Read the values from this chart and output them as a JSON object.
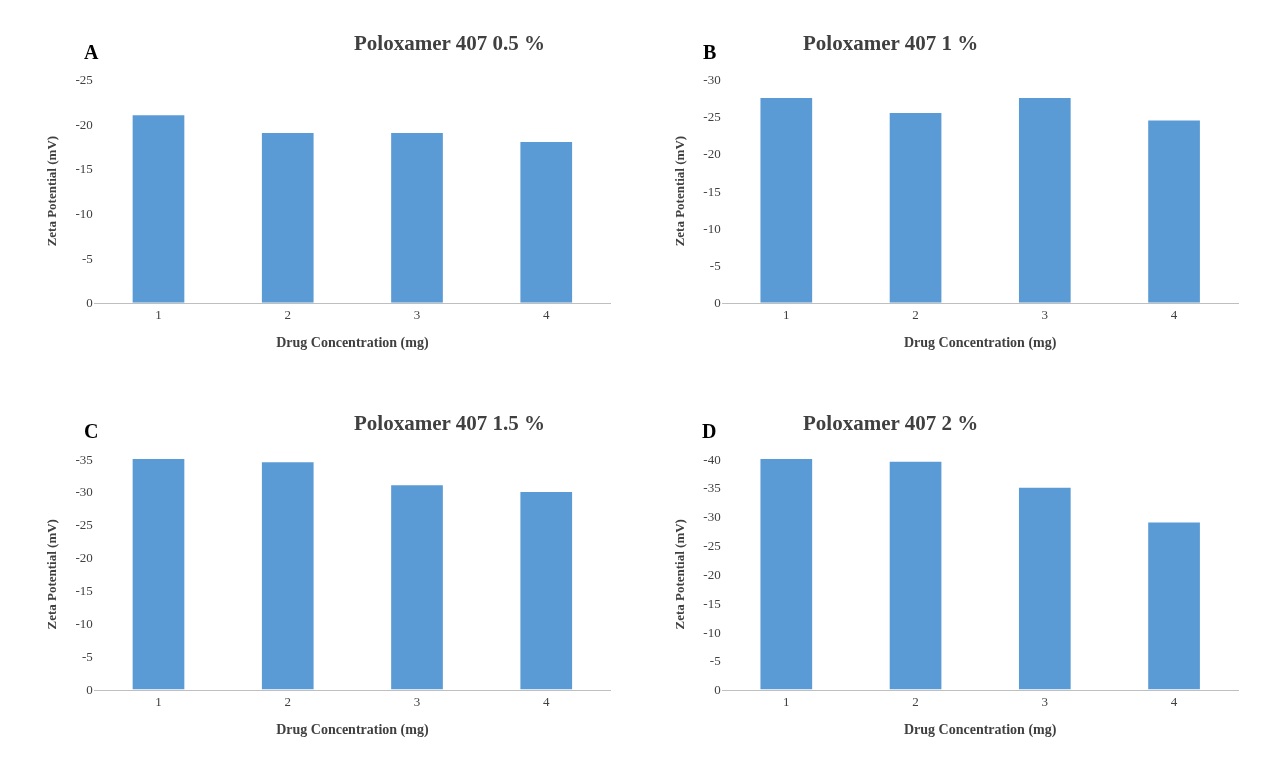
{
  "chart_data": [
    {
      "type": "bar",
      "title": "Poloxamer 407 0.5 %",
      "xlabel": "Drug Concentration (mg)",
      "ylabel": "Zeta Potential (mV)",
      "annotations": [
        "A"
      ],
      "categories": [
        "1",
        "2",
        "3",
        "4"
      ],
      "values": [
        -21,
        -19,
        -19,
        -18
      ],
      "color": "#5b9bd5",
      "ylim": [
        0,
        -25
      ],
      "yticks": [
        0,
        -5,
        -10,
        -15,
        -20,
        -25
      ]
    },
    {
      "type": "bar",
      "title": "Poloxamer 407 1 %",
      "xlabel": "Drug Concentration (mg)",
      "ylabel": "Zeta Potential (mV)",
      "annotations": [
        "B"
      ],
      "categories": [
        "1",
        "2",
        "3",
        "4"
      ],
      "values": [
        -27.5,
        -25.5,
        -27.5,
        -24.5
      ],
      "color": "#5b9bd5",
      "ylim": [
        0,
        -30
      ],
      "yticks": [
        0,
        -5,
        -10,
        -15,
        -20,
        -25,
        -30
      ]
    },
    {
      "type": "bar",
      "title": "Poloxamer 407 1.5 %",
      "xlabel": "Drug Concentration (mg)",
      "ylabel": "Zeta Potential (mV)",
      "annotations": [
        "C"
      ],
      "categories": [
        "1",
        "2",
        "3",
        "4"
      ],
      "values": [
        -35,
        -34.5,
        -31,
        -30
      ],
      "color": "#5b9bd5",
      "ylim": [
        0,
        -35
      ],
      "yticks": [
        0,
        -5,
        -10,
        -15,
        -20,
        -25,
        -30,
        -35
      ]
    },
    {
      "type": "bar",
      "title": "Poloxamer 407 2 %",
      "xlabel": "Drug Concentration (mg)",
      "ylabel": "Zeta Potential (mV)",
      "annotations": [
        "D"
      ],
      "categories": [
        "1",
        "2",
        "3",
        "4"
      ],
      "values": [
        -40,
        -39.5,
        -35,
        -29
      ],
      "color": "#5b9bd5",
      "ylim": [
        0,
        -40
      ],
      "yticks": [
        0,
        -5,
        -10,
        -15,
        -20,
        -25,
        -30,
        -35,
        -40
      ]
    }
  ]
}
